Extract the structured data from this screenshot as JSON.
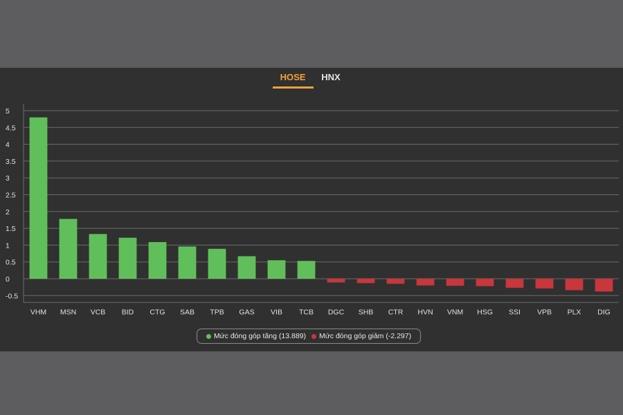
{
  "tabs": [
    {
      "label": "HOSE",
      "active": true
    },
    {
      "label": "HNX",
      "active": false
    }
  ],
  "colors": {
    "positive": "#61bf5b",
    "negative": "#c9363c",
    "active_tab": "#f2a03c",
    "grid": "#6b6b6b",
    "text": "#e0e0e0"
  },
  "chart_data": {
    "type": "bar",
    "title": "",
    "xlabel": "",
    "ylabel": "",
    "ylim": [
      -0.5,
      5
    ],
    "yticks": [
      5,
      4.5,
      4,
      3.5,
      3,
      2.5,
      2,
      1.5,
      1,
      0.5,
      0,
      -0.5
    ],
    "grid": true,
    "legend_position": "bottom-center",
    "categories": [
      "VHM",
      "MSN",
      "VCB",
      "BID",
      "CTG",
      "SAB",
      "TPB",
      "GAS",
      "VIB",
      "TCB",
      "DGC",
      "SHB",
      "CTR",
      "HVN",
      "VNM",
      "HSG",
      "SSI",
      "VPB",
      "PLX",
      "DIG"
    ],
    "values": [
      4.8,
      1.78,
      1.33,
      1.22,
      1.09,
      0.96,
      0.89,
      0.67,
      0.55,
      0.53,
      -0.11,
      -0.13,
      -0.15,
      -0.2,
      -0.21,
      -0.22,
      -0.27,
      -0.29,
      -0.34,
      -0.38
    ],
    "series": [
      {
        "name": "Mức đóng góp tăng (13.889)",
        "color": "#61bf5b"
      },
      {
        "name": "Mức đóng góp giảm (-2.297)",
        "color": "#c9363c"
      }
    ]
  }
}
